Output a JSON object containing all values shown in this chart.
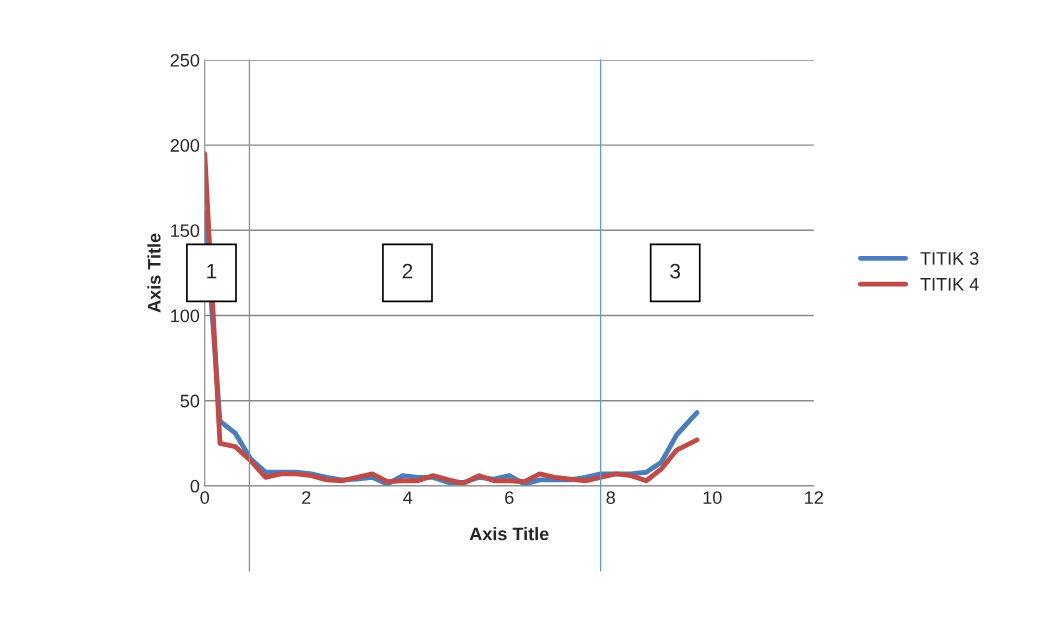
{
  "chart_data": {
    "type": "line",
    "xlabel": "Axis Title",
    "ylabel": "Axis Title",
    "x": [
      0,
      0.3,
      0.6,
      0.9,
      1.2,
      1.5,
      1.8,
      2.1,
      2.4,
      2.7,
      3.0,
      3.3,
      3.6,
      3.9,
      4.2,
      4.5,
      4.8,
      5.1,
      5.4,
      5.7,
      6.0,
      6.3,
      6.6,
      6.9,
      7.2,
      7.5,
      7.8,
      8.1,
      8.4,
      8.7,
      9.0,
      9.3,
      9.7
    ],
    "series": [
      {
        "name": "TITIK 3",
        "color": "#4a7ebb",
        "values": [
          160,
          38,
          31,
          16,
          8,
          8,
          8,
          7,
          5,
          3.5,
          4,
          5,
          1,
          6,
          5,
          5,
          2,
          2,
          5,
          4,
          6,
          1,
          3.5,
          3.5,
          3.5,
          5,
          7,
          7,
          7,
          8,
          14,
          30,
          43
        ]
      },
      {
        "name": "TITIK 4",
        "color": "#be4b48",
        "values": [
          195,
          25,
          23,
          15,
          5,
          7,
          7,
          6,
          3.5,
          3,
          5,
          7,
          2.5,
          3,
          3,
          6,
          3.5,
          1.5,
          6,
          3,
          3,
          2.5,
          7,
          5,
          4,
          3,
          5,
          7,
          6,
          3,
          10,
          21,
          27
        ]
      }
    ],
    "xlim": [
      0,
      12
    ],
    "xticks": [
      0,
      2,
      4,
      6,
      8,
      10,
      12
    ],
    "ylim": [
      0,
      250
    ],
    "yticks": [
      0,
      50,
      100,
      150,
      200,
      250
    ],
    "ref_lines": [
      {
        "axis": "x",
        "value": 0.88,
        "color": "#5b9bd5"
      },
      {
        "axis": "x",
        "value": 7.8,
        "color": "#5b9bd5"
      }
    ],
    "annotations": [
      "1",
      "2",
      "3"
    ],
    "grid": "y",
    "legend": "right",
    "marker": "none",
    "line_style": "solid"
  }
}
